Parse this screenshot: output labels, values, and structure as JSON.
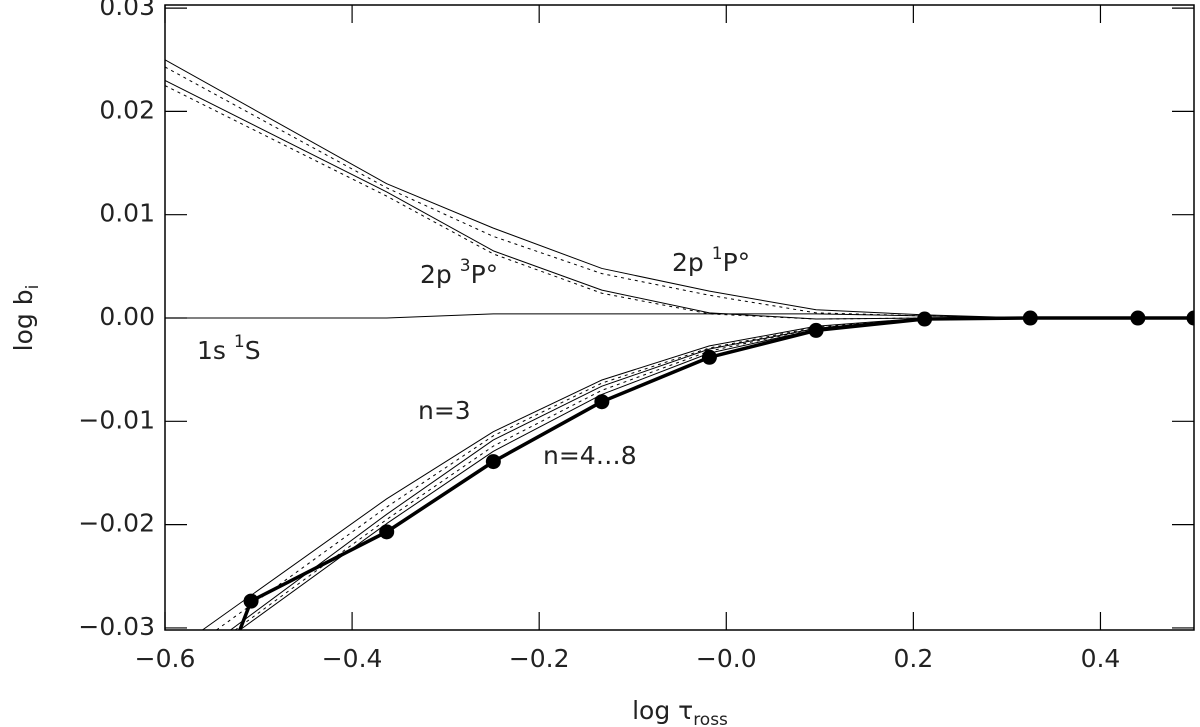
{
  "chart_data": {
    "type": "line",
    "xlabel": [
      "log τ",
      "ross"
    ],
    "ylabel": [
      "log b",
      "i"
    ],
    "xlim": [
      -0.6,
      0.5
    ],
    "ylim": [
      -0.0302,
      0.0303
    ],
    "xticks": [
      {
        "value": -0.6,
        "label": "−0.6"
      },
      {
        "value": -0.4,
        "label": "−0.4"
      },
      {
        "value": -0.2,
        "label": "−0.2"
      },
      {
        "value": 0,
        "label": "−0.0"
      },
      {
        "value": 0.2,
        "label": "0.2"
      },
      {
        "value": 0.4,
        "label": "0.4"
      }
    ],
    "yticks": [
      {
        "value": -0.03,
        "label": "−0.03"
      },
      {
        "value": -0.02,
        "label": "−0.02"
      },
      {
        "value": -0.01,
        "label": "−0.01"
      },
      {
        "value": 0,
        "label": "0.00"
      },
      {
        "value": 0.01,
        "label": "0.01"
      },
      {
        "value": 0.02,
        "label": "0.02"
      },
      {
        "value": 0.03,
        "label": "0.03"
      }
    ],
    "annotations": [
      [
        "2p ",
        "3",
        "P°"
      ],
      [
        "2p ",
        "1",
        "P°"
      ],
      [
        "1s ",
        "1",
        "S"
      ],
      [
        "n=3"
      ],
      [
        "n=4…8"
      ]
    ],
    "series": [
      {
        "color": "#000",
        "width": 1,
        "dash": false,
        "markers": false,
        "x": [
          -0.6,
          -0.363,
          -0.249,
          -0.133,
          -0.018,
          0.096,
          0.212,
          0.325,
          0.5
        ],
        "values": [
          0.025,
          0.013,
          0.0087,
          0.0048,
          0.0026,
          0.0008,
          0.0003,
          0,
          0
        ]
      },
      {
        "color": "#000",
        "width": 1,
        "dash": true,
        "markers": false,
        "x": [
          -0.6,
          -0.363,
          -0.249,
          -0.133,
          -0.018,
          0.096,
          0.212,
          0.325,
          0.5
        ],
        "values": [
          0.0243,
          0.0126,
          0.0079,
          0.0043,
          0.0022,
          0.0005,
          0.0002,
          0,
          0
        ]
      },
      {
        "color": "#000",
        "width": 1,
        "dash": false,
        "markers": false,
        "x": [
          -0.6,
          -0.363,
          -0.249,
          -0.133,
          -0.018,
          0.096,
          0.212,
          0.5
        ],
        "values": [
          0.023,
          0.0122,
          0.0065,
          0.0027,
          0.0005,
          -0.0001,
          0,
          0
        ]
      },
      {
        "color": "#000",
        "width": 1,
        "dash": true,
        "markers": false,
        "x": [
          -0.6,
          -0.363,
          -0.249,
          -0.133,
          -0.018,
          0.096,
          0.212,
          0.5
        ],
        "values": [
          0.0225,
          0.0118,
          0.0062,
          0.0024,
          0.0004,
          -0.0001,
          0,
          0
        ]
      },
      {
        "color": "#000",
        "width": 1,
        "dash": false,
        "markers": false,
        "x": [
          -0.6,
          -0.363,
          -0.249,
          0.096,
          0.325,
          0.5
        ],
        "values": [
          0,
          0,
          0.0004,
          0.0004,
          0,
          0
        ]
      },
      {
        "color": "#000",
        "width": 1,
        "dash": false,
        "markers": false,
        "x": [
          -0.56,
          -0.363,
          -0.249,
          -0.133,
          -0.018,
          0.096,
          0.212,
          0.5
        ],
        "values": [
          -0.0302,
          -0.0175,
          -0.011,
          -0.006,
          -0.0027,
          -0.0008,
          0,
          0
        ]
      },
      {
        "color": "#000",
        "width": 1,
        "dash": true,
        "markers": false,
        "x": [
          -0.545,
          -0.363,
          -0.249,
          -0.133,
          -0.018,
          0.096,
          0.212,
          0.5
        ],
        "values": [
          -0.0302,
          -0.0183,
          -0.0114,
          -0.0063,
          -0.0029,
          -0.0009,
          0,
          0
        ]
      },
      {
        "color": "#000",
        "width": 1,
        "dash": false,
        "markers": false,
        "x": [
          -0.53,
          -0.363,
          -0.249,
          -0.133,
          -0.018,
          0.096,
          0.212,
          0.5
        ],
        "values": [
          -0.0302,
          -0.019,
          -0.0118,
          -0.0066,
          -0.003,
          -0.001,
          0,
          0
        ]
      },
      {
        "color": "#000",
        "width": 1,
        "dash": true,
        "markers": false,
        "x": [
          -0.525,
          -0.363,
          -0.249,
          -0.133,
          -0.018,
          0.096,
          0.212,
          0.5
        ],
        "values": [
          -0.0302,
          -0.0195,
          -0.0124,
          -0.007,
          -0.0032,
          -0.001,
          0,
          0
        ]
      },
      {
        "color": "#000",
        "width": 1,
        "dash": false,
        "markers": false,
        "x": [
          -0.52,
          -0.363,
          -0.249,
          -0.133,
          -0.018,
          0.096,
          0.212,
          0.5
        ],
        "values": [
          -0.0302,
          -0.0199,
          -0.0129,
          -0.0074,
          -0.0034,
          -0.0011,
          0,
          0
        ]
      },
      {
        "color": "#000",
        "width": 3.5,
        "dash": false,
        "markers": true,
        "x": [
          -0.52,
          -0.508,
          -0.363,
          -0.249,
          -0.133,
          -0.018,
          0.096,
          0.212,
          0.325,
          0.44,
          0.5
        ],
        "values": [
          -0.0302,
          -0.0274,
          -0.0207,
          -0.0139,
          -0.0081,
          -0.0038,
          -0.0012,
          -0.0001,
          0,
          0,
          0
        ]
      }
    ]
  }
}
